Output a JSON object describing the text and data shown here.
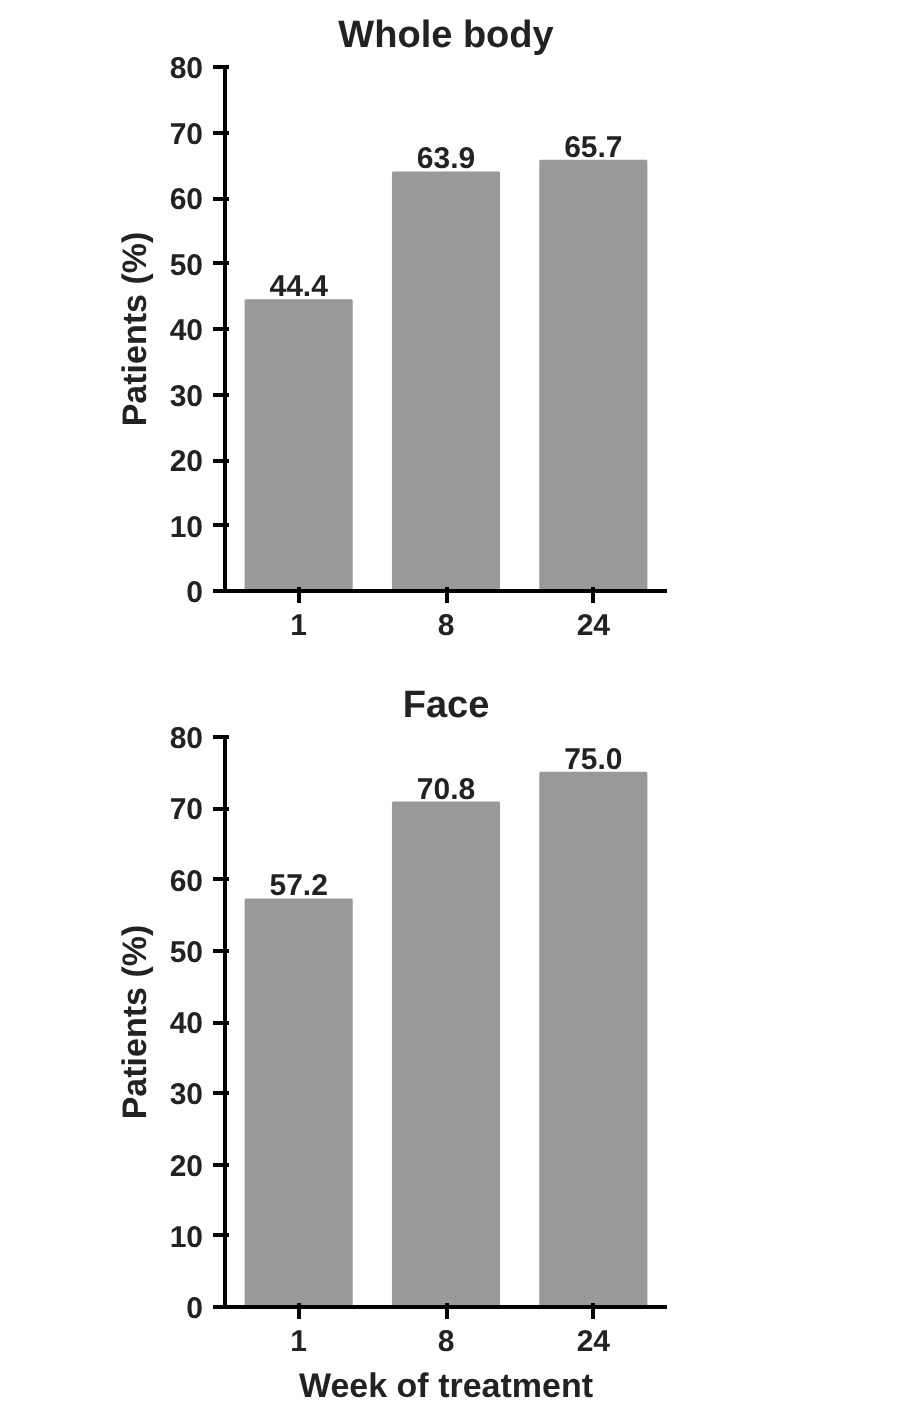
{
  "chart_data": [
    {
      "type": "bar",
      "title": "Whole body",
      "ylabel": "Patients (%)",
      "categories": [
        "1",
        "8",
        "24"
      ],
      "values": [
        44.4,
        63.9,
        65.7
      ],
      "value_labels": [
        "44.4",
        "63.9",
        "65.7"
      ],
      "color": "#999999",
      "ylim": [
        0,
        80
      ],
      "yticks": [
        0,
        10,
        20,
        30,
        40,
        50,
        60,
        70,
        80
      ]
    },
    {
      "type": "bar",
      "title": "Face",
      "ylabel": "Patients (%)",
      "xlabel": "Week of treatment",
      "categories": [
        "1",
        "8",
        "24"
      ],
      "values": [
        57.2,
        70.8,
        75.0
      ],
      "value_labels": [
        "57.2",
        "70.8",
        "75.0"
      ],
      "color": "#999999",
      "ylim": [
        0,
        80
      ],
      "yticks": [
        0,
        10,
        20,
        30,
        40,
        50,
        60,
        70,
        80
      ]
    }
  ]
}
